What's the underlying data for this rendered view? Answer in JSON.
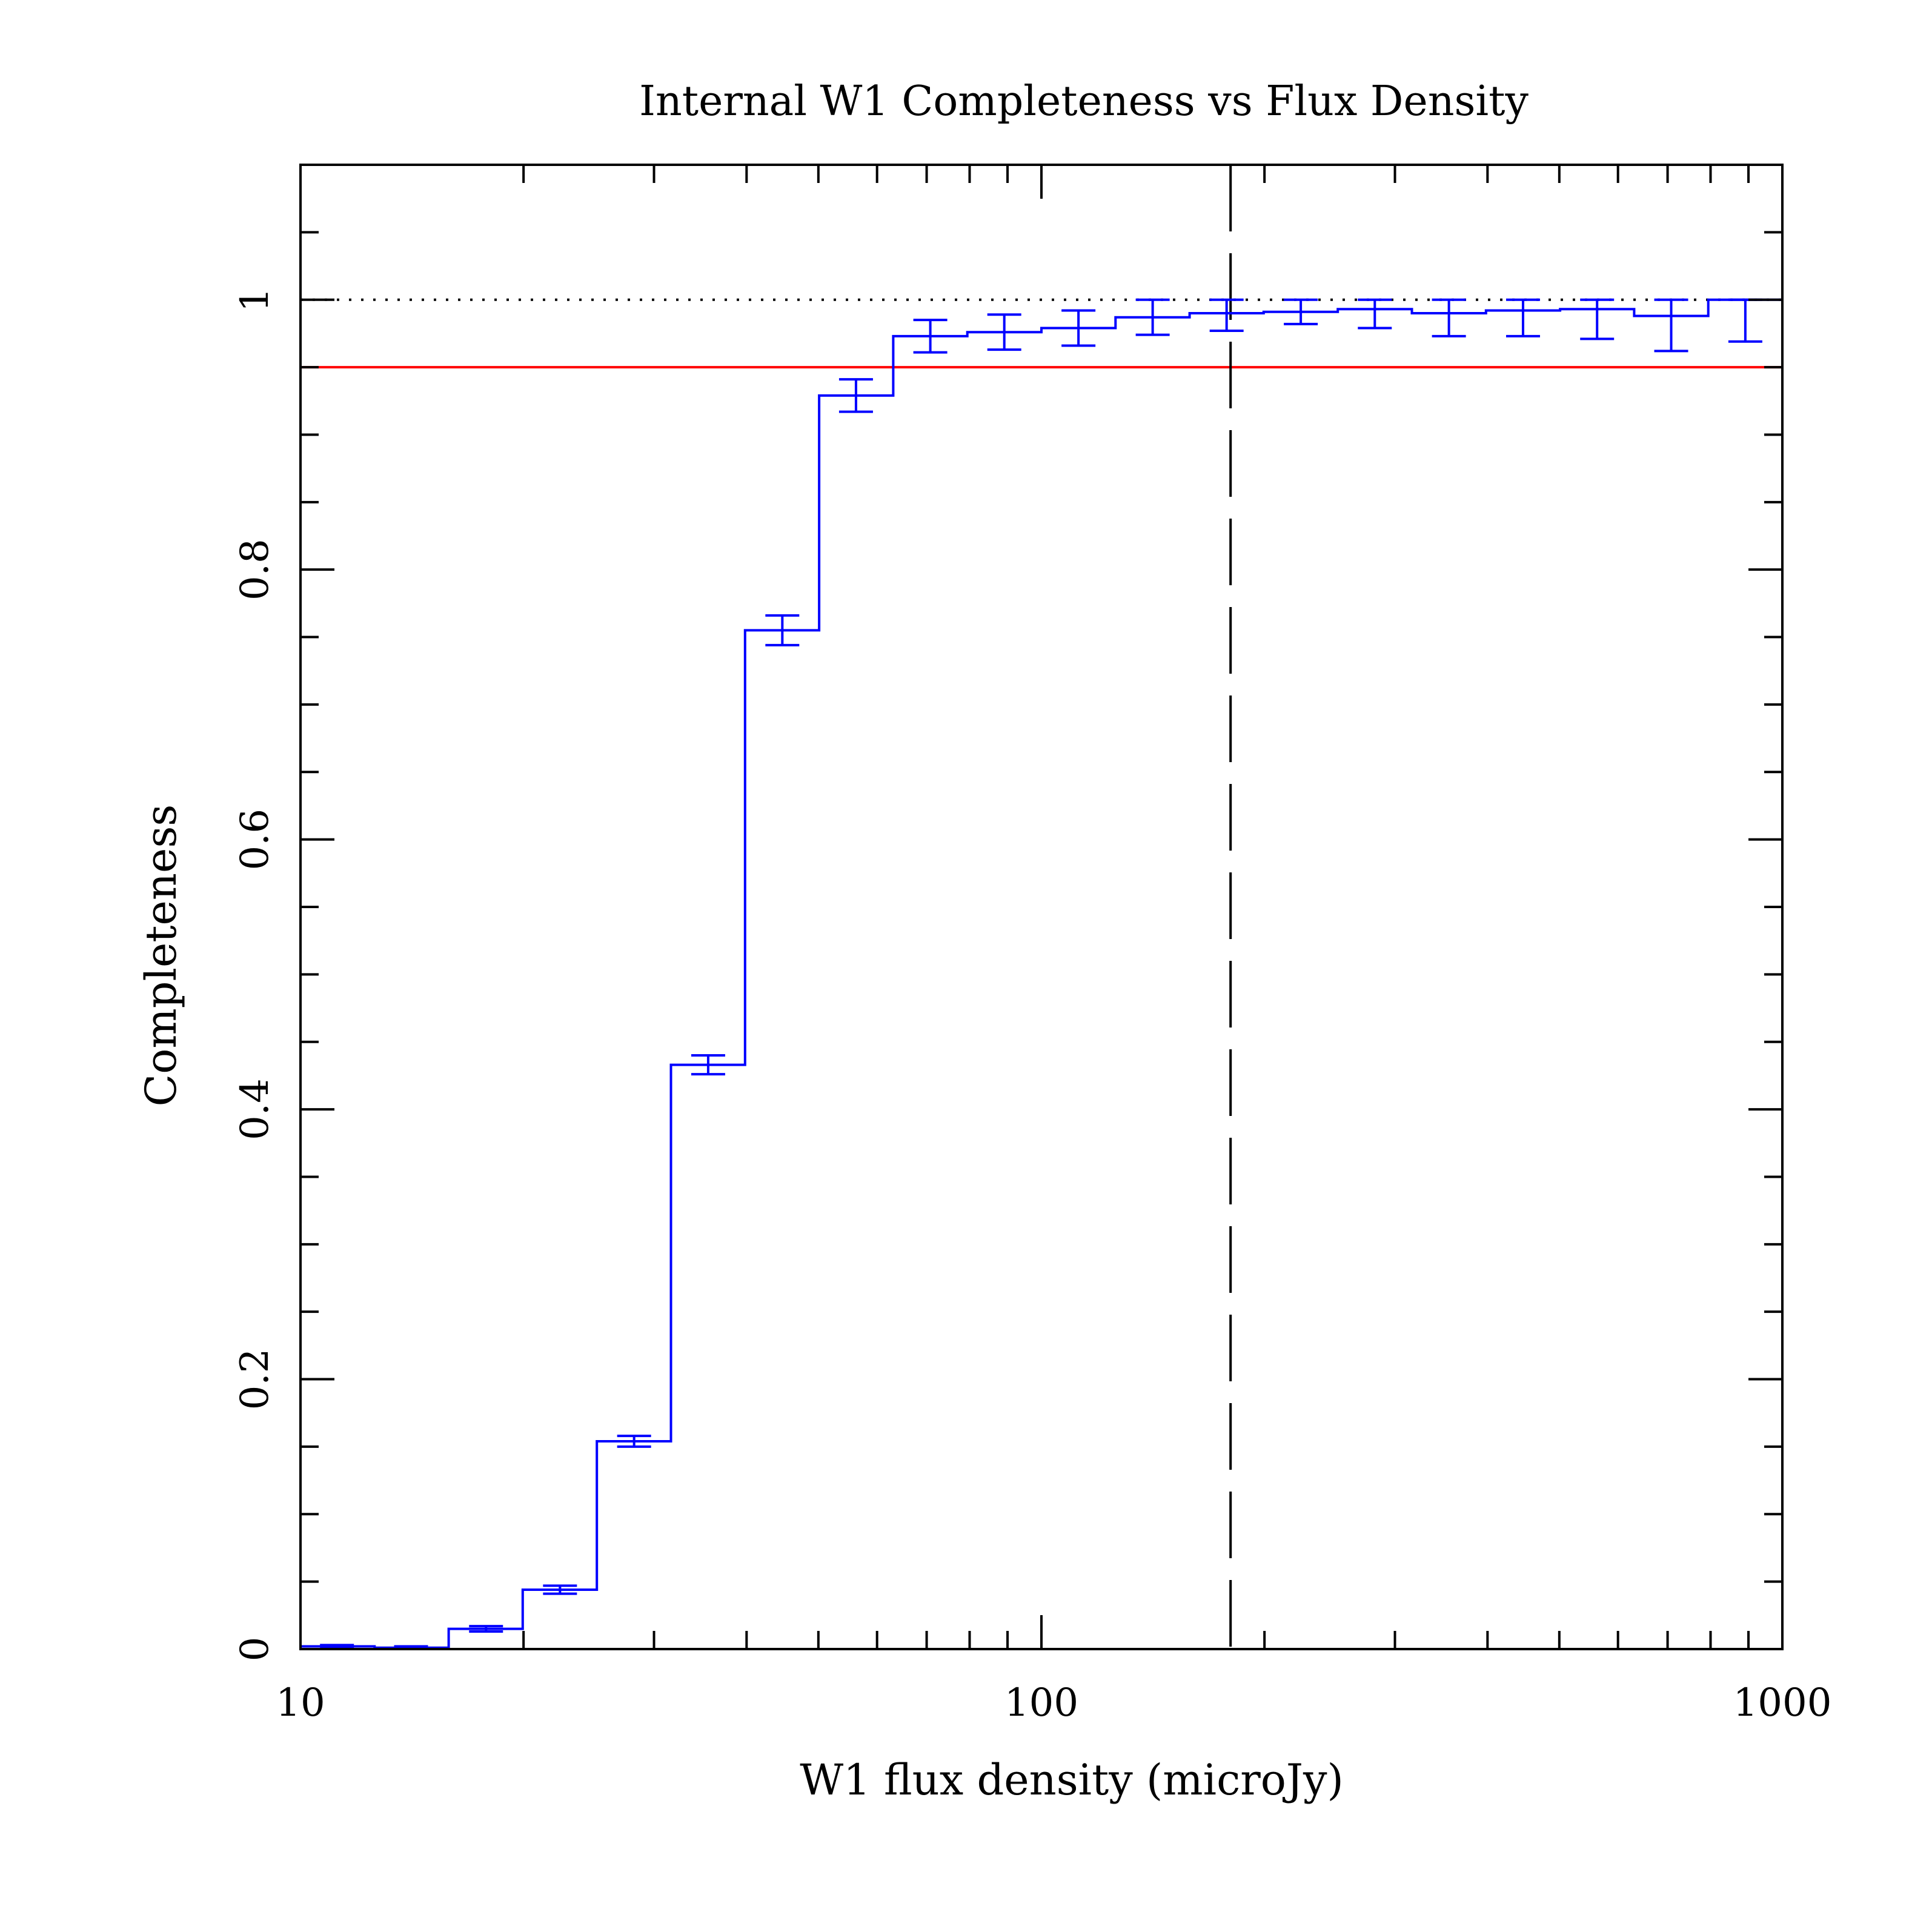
{
  "chart_data": {
    "type": "line",
    "title": "Internal W1 Completeness vs Flux Density",
    "xlabel": "W1 flux density (microJy)",
    "ylabel": "Completeness",
    "xscale": "log",
    "xlim": [
      10,
      1000
    ],
    "ylim": [
      0,
      1.1
    ],
    "xticks": [
      10,
      100,
      1000
    ],
    "xtick_labels": [
      "10",
      "100",
      "1000"
    ],
    "yticks": [
      0,
      0.2,
      0.4,
      0.6,
      0.8,
      1
    ],
    "ytick_labels": [
      "0",
      "0.2",
      "0.4",
      "0.6",
      "0.8",
      "1"
    ],
    "grid": false,
    "series": [
      {
        "style": "step-histogram",
        "color": "#0000ff",
        "bin_edges": [
          10,
          12.59,
          15.85,
          19.95,
          25.12,
          31.62,
          39.81,
          50.12,
          63.1,
          79.43,
          100,
          125.9,
          158.5,
          199.5,
          251.2,
          316.2,
          398.1,
          501.2,
          631,
          794.3,
          1000
        ],
        "bin_centers": [
          11.2,
          14.1,
          17.8,
          22.4,
          28.2,
          35.5,
          44.7,
          56.2,
          70.8,
          89.1,
          112.2,
          141.3,
          177.8,
          223.9,
          281.8,
          354.8,
          446.7,
          562.3,
          707.9,
          891.3
        ],
        "values": [
          0.002,
          0.001,
          0.015,
          0.044,
          0.154,
          0.433,
          0.755,
          0.929,
          0.973,
          0.976,
          0.979,
          0.987,
          0.99,
          0.991,
          0.993,
          0.99,
          0.992,
          0.993,
          0.988,
          1.0
        ],
        "errors": [
          0.001,
          0.001,
          0.002,
          0.003,
          0.004,
          0.007,
          0.011,
          0.012,
          0.012,
          0.013,
          0.013,
          0.013,
          0.013,
          0.009,
          0.014,
          0.017,
          0.019,
          0.022,
          0.026,
          0.031
        ]
      }
    ],
    "reference_lines": [
      {
        "orientation": "horizontal",
        "value": 1.0,
        "style": "dotted",
        "color": "#000000"
      },
      {
        "orientation": "horizontal",
        "value": 0.95,
        "style": "solid",
        "color": "#ff0000"
      },
      {
        "orientation": "vertical",
        "value": 180,
        "style": "dashed",
        "color": "#000000"
      }
    ]
  }
}
